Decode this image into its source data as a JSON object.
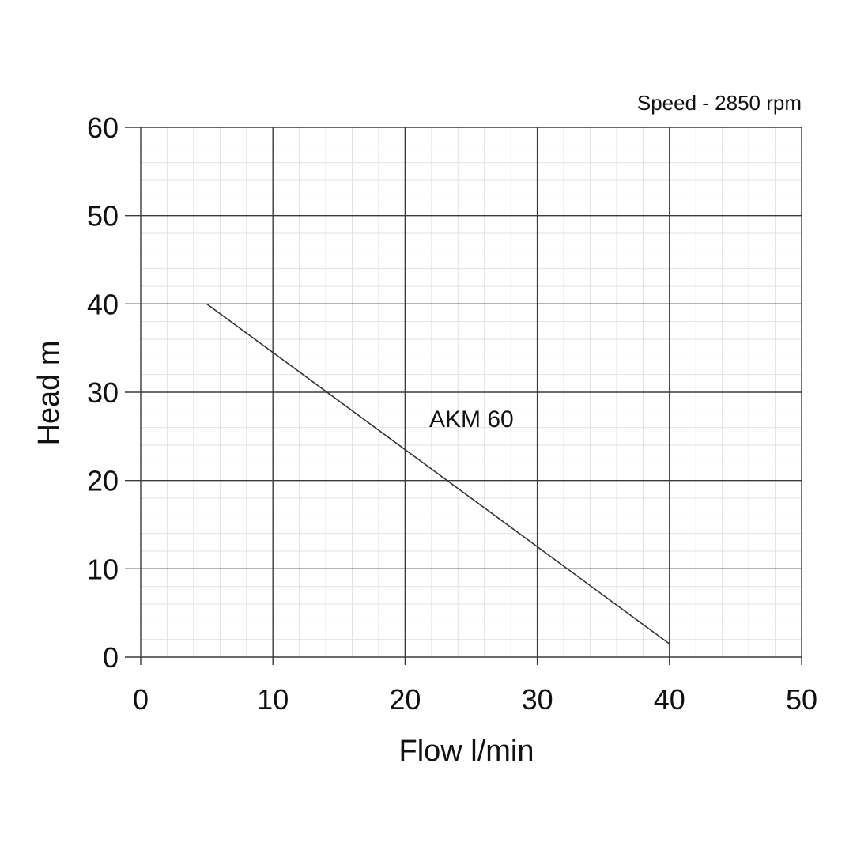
{
  "chart_data": {
    "type": "line",
    "xlabel": "Flow l/min",
    "ylabel": "Head m",
    "xlim": [
      0,
      50
    ],
    "ylim": [
      0,
      60
    ],
    "x_ticks": [
      "0",
      "10",
      "20",
      "30",
      "40",
      "50"
    ],
    "y_ticks": [
      "0",
      "10",
      "20",
      "30",
      "40",
      "50",
      "60"
    ],
    "grid": true,
    "note": "Speed - 2850 rpm",
    "series": [
      {
        "name": "AKM 60",
        "x": [
          5,
          40
        ],
        "y": [
          40,
          1.5
        ]
      }
    ],
    "colors": {
      "major_grid": "#3a3a3a",
      "minor_grid": "#e2e2e2",
      "line": "#333333"
    }
  }
}
